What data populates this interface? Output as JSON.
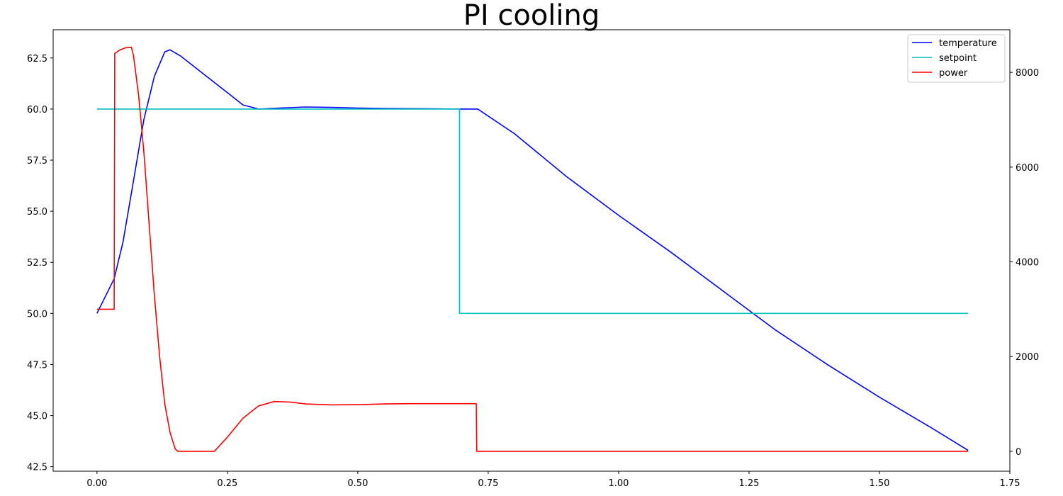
{
  "chart_data": {
    "type": "line",
    "title": "PI cooling",
    "xlabel": "",
    "ylabel_left": "",
    "ylabel_right": "",
    "xlim": [
      -0.084,
      1.75
    ],
    "ylim_left": [
      42.28,
      63.88
    ],
    "ylim_right": [
      -420,
      8900
    ],
    "grid": false,
    "legend_position": "top-right",
    "x_ticks": [
      {
        "value": 0.0,
        "label": "0.00"
      },
      {
        "value": 0.25,
        "label": "0.25"
      },
      {
        "value": 0.5,
        "label": "0.50"
      },
      {
        "value": 0.75,
        "label": "0.75"
      },
      {
        "value": 1.0,
        "label": "1.00"
      },
      {
        "value": 1.25,
        "label": "1.25"
      },
      {
        "value": 1.5,
        "label": "1.50"
      },
      {
        "value": 1.75,
        "label": "1.75"
      }
    ],
    "y_left_ticks": [
      {
        "value": 42.5,
        "label": "42.5"
      },
      {
        "value": 45.0,
        "label": "45.0"
      },
      {
        "value": 47.5,
        "label": "47.5"
      },
      {
        "value": 50.0,
        "label": "50.0"
      },
      {
        "value": 52.5,
        "label": "52.5"
      },
      {
        "value": 55.0,
        "label": "55.0"
      },
      {
        "value": 57.5,
        "label": "57.5"
      },
      {
        "value": 60.0,
        "label": "60.0"
      },
      {
        "value": 62.5,
        "label": "62.5"
      }
    ],
    "y_right_ticks": [
      {
        "value": 0,
        "label": "0"
      },
      {
        "value": 2000,
        "label": "2000"
      },
      {
        "value": 4000,
        "label": "4000"
      },
      {
        "value": 6000,
        "label": "6000"
      },
      {
        "value": 8000,
        "label": "8000"
      }
    ],
    "series": [
      {
        "name": "temperature",
        "axis": "left",
        "color": "#0000ff",
        "points": [
          [
            0.0,
            50.0
          ],
          [
            0.033,
            51.7
          ],
          [
            0.05,
            53.5
          ],
          [
            0.07,
            56.5
          ],
          [
            0.09,
            59.5
          ],
          [
            0.11,
            61.6
          ],
          [
            0.13,
            62.8
          ],
          [
            0.14,
            62.9
          ],
          [
            0.16,
            62.6
          ],
          [
            0.2,
            61.8
          ],
          [
            0.25,
            60.8
          ],
          [
            0.28,
            60.2
          ],
          [
            0.31,
            60.0
          ],
          [
            0.35,
            60.05
          ],
          [
            0.4,
            60.1
          ],
          [
            0.45,
            60.08
          ],
          [
            0.5,
            60.05
          ],
          [
            0.55,
            60.03
          ],
          [
            0.6,
            60.02
          ],
          [
            0.65,
            60.01
          ],
          [
            0.7,
            60.0
          ],
          [
            0.73,
            60.0
          ],
          [
            0.8,
            58.8
          ],
          [
            0.9,
            56.7
          ],
          [
            1.0,
            54.8
          ],
          [
            1.1,
            53.0
          ],
          [
            1.2,
            51.1
          ],
          [
            1.3,
            49.2
          ],
          [
            1.4,
            47.5
          ],
          [
            1.5,
            45.9
          ],
          [
            1.6,
            44.4
          ],
          [
            1.67,
            43.3
          ]
        ]
      },
      {
        "name": "setpoint",
        "axis": "left",
        "color": "#00bfbf",
        "points": [
          [
            0.0,
            60.0
          ],
          [
            0.695,
            60.0
          ],
          [
            0.695,
            50.0
          ],
          [
            1.67,
            50.0
          ]
        ]
      },
      {
        "name": "power",
        "axis": "right",
        "color": "#ff0000",
        "points": [
          [
            0.0,
            3000
          ],
          [
            0.033,
            3000
          ],
          [
            0.034,
            8400
          ],
          [
            0.045,
            8480
          ],
          [
            0.055,
            8520
          ],
          [
            0.066,
            8530
          ],
          [
            0.07,
            8350
          ],
          [
            0.08,
            7500
          ],
          [
            0.09,
            6300
          ],
          [
            0.1,
            4800
          ],
          [
            0.11,
            3300
          ],
          [
            0.12,
            2000
          ],
          [
            0.13,
            1000
          ],
          [
            0.14,
            400
          ],
          [
            0.15,
            50
          ],
          [
            0.155,
            0
          ],
          [
            0.225,
            0
          ],
          [
            0.25,
            300
          ],
          [
            0.28,
            700
          ],
          [
            0.31,
            960
          ],
          [
            0.34,
            1050
          ],
          [
            0.37,
            1040
          ],
          [
            0.4,
            1000
          ],
          [
            0.45,
            980
          ],
          [
            0.5,
            985
          ],
          [
            0.55,
            1000
          ],
          [
            0.6,
            1005
          ],
          [
            0.65,
            1005
          ],
          [
            0.7,
            1005
          ],
          [
            0.727,
            1005
          ],
          [
            0.728,
            0
          ],
          [
            1.67,
            0
          ]
        ]
      }
    ]
  }
}
